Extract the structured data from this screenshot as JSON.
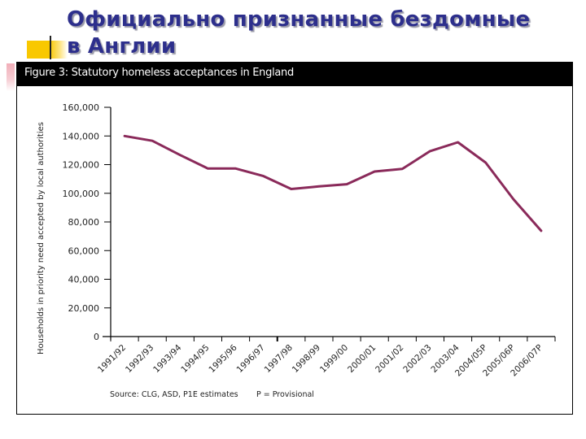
{
  "slide": {
    "title_line1": "Официально признанные бездомные",
    "title_line2": "в Англии"
  },
  "figure": {
    "header": "Figure 3: Statutory homeless acceptances in England",
    "source": "Source: CLG, ASD, P1E estimates",
    "provisional_note": "P = Provisional"
  },
  "colors": {
    "title": "#2d2f8c",
    "line": "#8a2a5a",
    "header_bg": "#000000",
    "accent_yellow": "#f9c800"
  },
  "chart_data": {
    "type": "line",
    "title": "Figure 3: Statutory homeless acceptances in England",
    "xlabel": "",
    "ylabel": "Households in priority need accepted by local authorities",
    "ylim": [
      0,
      160000
    ],
    "yticks": [
      0,
      20000,
      40000,
      60000,
      80000,
      100000,
      120000,
      140000,
      160000
    ],
    "ytick_labels": [
      "0",
      "20,000",
      "40,000",
      "60,000",
      "80,000",
      "100,000",
      "120,000",
      "140,000",
      "160,000"
    ],
    "grid": false,
    "legend": null,
    "categories": [
      "1991/92",
      "1992/93",
      "1993/94",
      "1994/95",
      "1995/96",
      "1996/97",
      "1997/98",
      "1998/99",
      "1999/00",
      "2000/01",
      "2001/02",
      "2002/03",
      "2003/04",
      "2004/05P",
      "2005/06P",
      "2006/07P"
    ],
    "series": [
      {
        "name": "Statutory homeless acceptances",
        "values": [
          140000,
          136600,
          126700,
          117300,
          117300,
          112000,
          103000,
          104800,
          106300,
          115200,
          117000,
          129400,
          135600,
          121400,
          95900,
          73800
        ]
      }
    ],
    "annotations": [
      "Source: CLG, ASD, P1E estimates",
      "P = Provisional"
    ]
  }
}
